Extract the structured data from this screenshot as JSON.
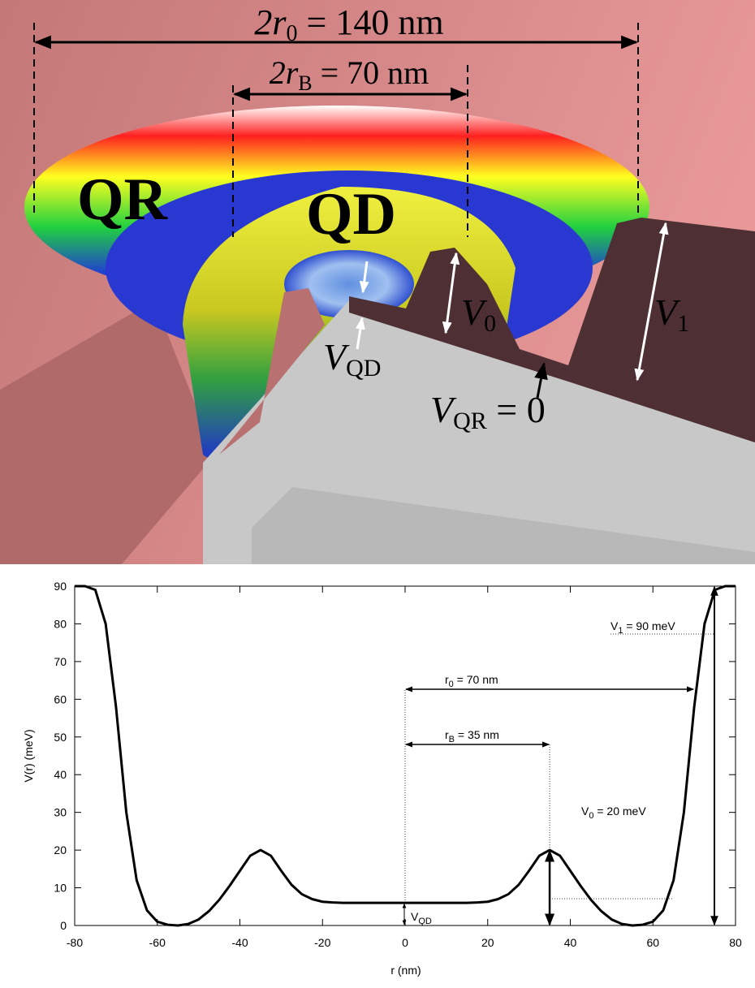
{
  "figure": {
    "render_labels": {
      "outer_diameter": {
        "label": "2r",
        "sub": "0",
        "suffix": " = 140 nm"
      },
      "inner_diameter": {
        "label": "2r",
        "sub": "B",
        "suffix": " = 70 nm"
      },
      "ring": "QR",
      "dot": "QD",
      "barrier": {
        "label": "V",
        "sub": "0"
      },
      "outer_wall": {
        "label": "V",
        "sub": "1"
      },
      "dot_level": {
        "label": "V",
        "sub": "QD"
      },
      "ring_level": {
        "label": "V",
        "sub": "QR",
        "suffix": " = 0"
      }
    }
  },
  "chart_data": {
    "type": "line",
    "xlabel": "r (nm)",
    "ylabel": "V(r) (meV)",
    "x": [
      -80,
      -77.5,
      -75,
      -72.5,
      -70,
      -67.5,
      -65,
      -62.5,
      -60,
      -57.5,
      -55,
      -52.5,
      -50,
      -47.5,
      -45,
      -42.5,
      -40,
      -37.5,
      -35,
      -32.5,
      -30,
      -27.5,
      -25,
      -22.5,
      -20,
      -17.5,
      -15,
      -12.5,
      -10,
      -7.5,
      -5,
      -2.5,
      0,
      2.5,
      5,
      7.5,
      10,
      12.5,
      15,
      17.5,
      20,
      22.5,
      25,
      27.5,
      30,
      32.5,
      35,
      37.5,
      40,
      42.5,
      45,
      47.5,
      50,
      52.5,
      55,
      57.5,
      60,
      62.5,
      65,
      67.5,
      70,
      72.5,
      75,
      77.5,
      80
    ],
    "series": [
      {
        "color": "#000000",
        "values": [
          90,
          90,
          89,
          80,
          58,
          30,
          12,
          4,
          1,
          0.2,
          0,
          0.4,
          1.6,
          3.8,
          6.8,
          10.5,
          14.5,
          18.5,
          20,
          18.5,
          14.5,
          10.8,
          8.3,
          7,
          6.3,
          6.1,
          6,
          6,
          6,
          6,
          6,
          6,
          6,
          6,
          6,
          6,
          6,
          6,
          6,
          6.1,
          6.3,
          7,
          8.3,
          10.8,
          14.5,
          18.5,
          20,
          18.5,
          14.5,
          10.5,
          6.8,
          3.8,
          1.6,
          0.4,
          0,
          0.2,
          1,
          4,
          12,
          30,
          58,
          80,
          89,
          90,
          90
        ]
      }
    ],
    "xlim": [
      -80,
      80
    ],
    "xticks": [
      -80,
      -60,
      -40,
      -20,
      0,
      20,
      40,
      60,
      80
    ],
    "ylim": [
      0,
      90
    ],
    "yticks": [
      0,
      10,
      20,
      30,
      40,
      50,
      60,
      70,
      80,
      90
    ],
    "annotations": [
      {
        "label": "V",
        "sub": "1",
        "suffix": " = 90 meV",
        "value": 90
      },
      {
        "label": "r",
        "sub": "0",
        "suffix": " = 70 nm",
        "value": 70
      },
      {
        "label": "r",
        "sub": "B",
        "suffix": " = 35 nm",
        "value": 35
      },
      {
        "label": "V",
        "sub": "0",
        "suffix": " = 20 meV",
        "value": 20
      },
      {
        "label": "V",
        "sub": "QD",
        "value": 6
      }
    ]
  }
}
